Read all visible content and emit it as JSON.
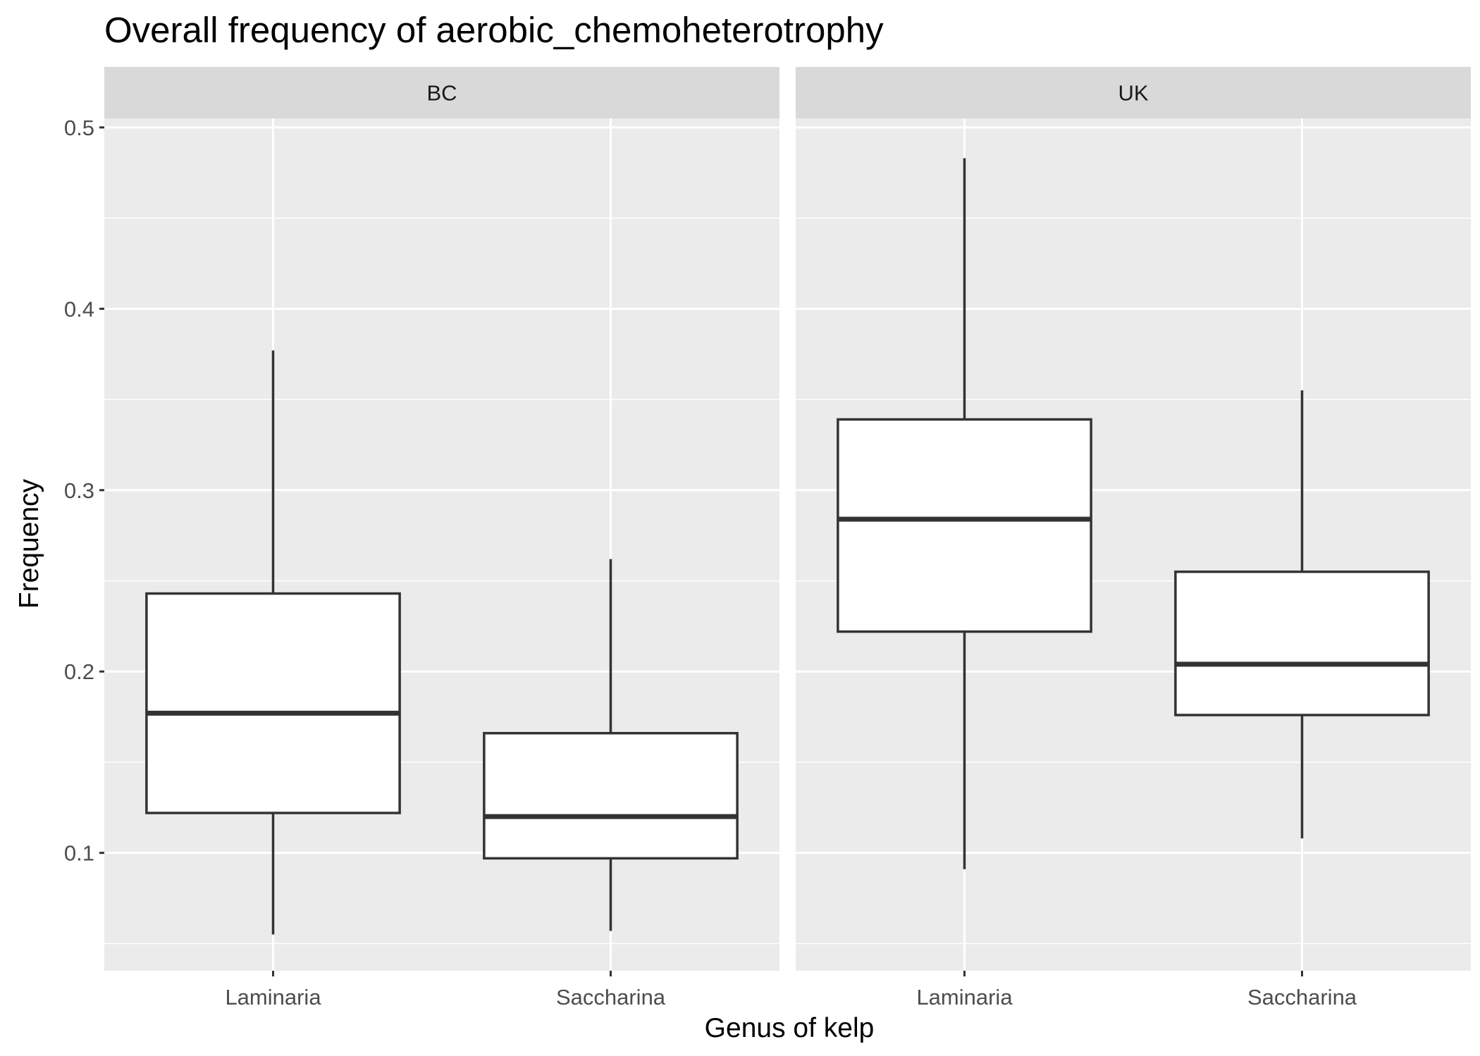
{
  "chart_data": {
    "type": "box",
    "title": "Overall frequency of aerobic_chemoheterotrophy",
    "xlabel": "Genus of kelp",
    "ylabel": "Frequency",
    "ylim": [
      0.035,
      0.505
    ],
    "yticks": [
      "0.1",
      "0.2",
      "0.3",
      "0.4",
      "0.5"
    ],
    "grid": true,
    "colors": {
      "panel_bg": "#ebebeb",
      "strip_bg": "#d9d9d9",
      "grid": "#ffffff",
      "box_fill": "#ffffff",
      "box_line": "#333333"
    },
    "facets": [
      {
        "label": "BC",
        "boxes": [
          {
            "category": "Laminaria",
            "whisker_low": 0.055,
            "q1": 0.122,
            "median": 0.177,
            "q3": 0.243,
            "whisker_high": 0.377
          },
          {
            "category": "Saccharina",
            "whisker_low": 0.057,
            "q1": 0.097,
            "median": 0.12,
            "q3": 0.166,
            "whisker_high": 0.262
          }
        ]
      },
      {
        "label": "UK",
        "boxes": [
          {
            "category": "Laminaria",
            "whisker_low": 0.091,
            "q1": 0.222,
            "median": 0.284,
            "q3": 0.339,
            "whisker_high": 0.483
          },
          {
            "category": "Saccharina",
            "whisker_low": 0.108,
            "q1": 0.176,
            "median": 0.204,
            "q3": 0.255,
            "whisker_high": 0.355
          }
        ]
      }
    ]
  }
}
